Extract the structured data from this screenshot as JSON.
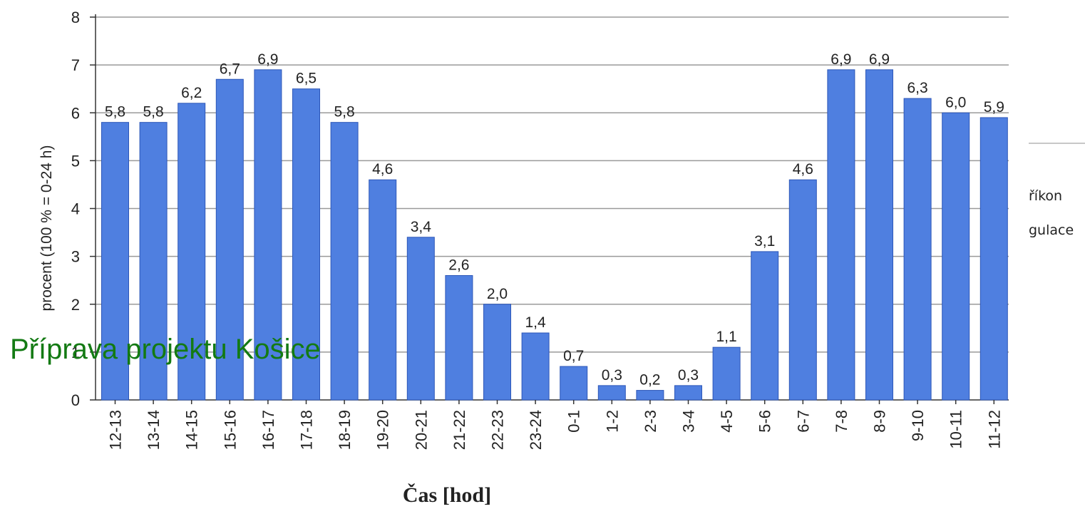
{
  "chart_data": {
    "type": "bar",
    "categories": [
      "12-13",
      "13-14",
      "14-15",
      "15-16",
      "16-17",
      "17-18",
      "18-19",
      "19-20",
      "20-21",
      "21-22",
      "22-23",
      "23-24",
      "0-1",
      "1-2",
      "2-3",
      "3-4",
      "4-5",
      "5-6",
      "6-7",
      "7-8",
      "8-9",
      "9-10",
      "10-11",
      "11-12"
    ],
    "values": [
      5.8,
      5.8,
      6.2,
      6.7,
      6.9,
      6.5,
      5.8,
      4.6,
      3.4,
      2.6,
      2.0,
      1.4,
      0.7,
      0.3,
      0.2,
      0.3,
      1.1,
      3.1,
      4.6,
      6.9,
      6.9,
      6.3,
      6.0,
      5.9
    ],
    "value_labels": [
      "5,8",
      "5,8",
      "6,2",
      "6,7",
      "6,9",
      "6,5",
      "5,8",
      "4,6",
      "3,4",
      "2,6",
      "2,0",
      "1,4",
      "0,7",
      "0,3",
      "0,2",
      "0,3",
      "1,1",
      "3,1",
      "4,6",
      "6,9",
      "6,9",
      "6,3",
      "6,0",
      "5,9"
    ],
    "ylabel": "procent  (100 % = 0-24 h)",
    "xlabel": "Čas [hod]",
    "ylim": [
      0,
      8
    ],
    "yticks": [
      0,
      1,
      2,
      3,
      4,
      5,
      6,
      7,
      8
    ],
    "grid": true,
    "bar_color": "#4f7fe0"
  },
  "overlay_title": "Příprava projektu Košice",
  "side_fragments": [
    "říkon",
    "gulace"
  ]
}
